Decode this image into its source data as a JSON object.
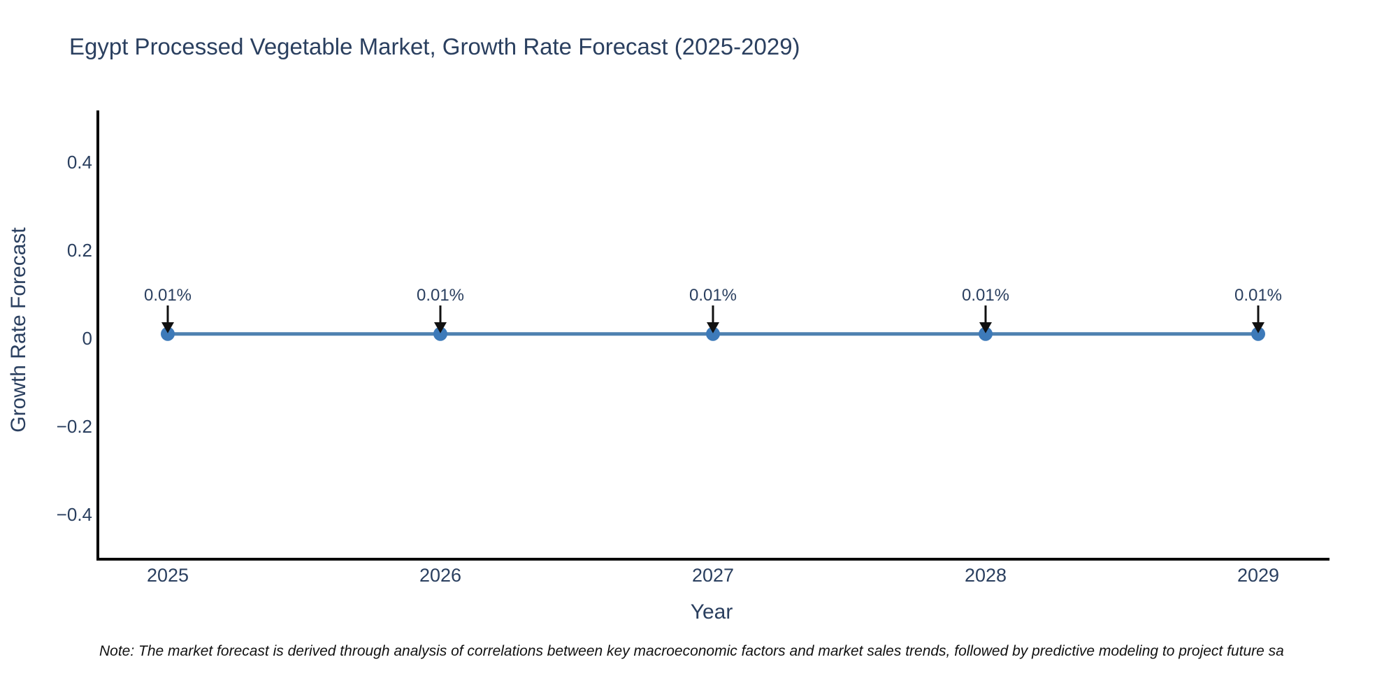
{
  "note": {
    "text": "Note: The market forecast is derived through analysis of correlations between key macroeconomic factors and market sales trends, followed by predictive modeling to project future sa"
  },
  "chart_data": {
    "type": "line",
    "title": "Egypt Processed Vegetable Market, Growth Rate Forecast (2025-2029)",
    "xlabel": "Year",
    "ylabel": "Growth Rate Forecast",
    "x": [
      2025,
      2026,
      2027,
      2028,
      2029
    ],
    "series": [
      {
        "name": "Growth Rate Forecast",
        "values": [
          0.01,
          0.01,
          0.01,
          0.01,
          0.01
        ]
      }
    ],
    "data_labels": [
      "0.01%",
      "0.01%",
      "0.01%",
      "0.01%",
      "0.01%"
    ],
    "ylim": [
      -0.5,
      0.5
    ],
    "yticks": [
      {
        "label": "0.4",
        "value": 0.4
      },
      {
        "label": "0.2",
        "value": 0.2
      },
      {
        "label": "0",
        "value": 0
      },
      {
        "label": "−0.2",
        "value": -0.2
      },
      {
        "label": "−0.4",
        "value": -0.4
      }
    ],
    "grid": false,
    "legend": "none",
    "colors": {
      "line": "#4e81b0",
      "marker": "#3d7ab9",
      "text": "#2a3f5f",
      "axis": "#000000",
      "arrow": "#111111"
    }
  }
}
